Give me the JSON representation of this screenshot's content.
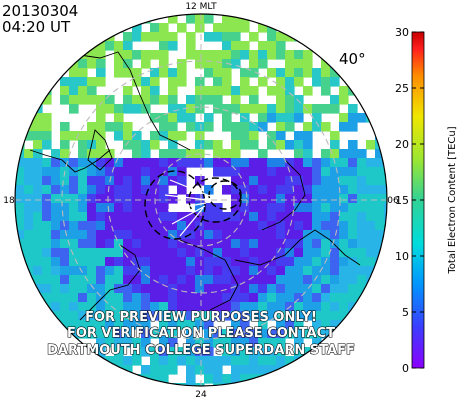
{
  "header": {
    "date": "20130304",
    "time": "04:20 UT"
  },
  "map": {
    "latitude_label": "40°",
    "mlt_labels": {
      "top": "12 MLT",
      "left": "18",
      "right": "06",
      "bottom": "24"
    },
    "colors": {
      "low": "#5a1ee6",
      "mid": "#1ec8c8",
      "high": "#8ce650"
    }
  },
  "colorbar": {
    "label": "Total Electron Content [TECu]",
    "ticks": [
      "0",
      "5",
      "10",
      "15",
      "20",
      "25",
      "30"
    ],
    "range": [
      0,
      30
    ],
    "colors": [
      "#8c00ff",
      "#3c3cff",
      "#0096ff",
      "#00dcdc",
      "#32d296",
      "#9be632",
      "#f0e600",
      "#ff8c00",
      "#ff1e1e",
      "#c80000"
    ]
  },
  "watermark": {
    "line1": "FOR PREVIEW PURPOSES ONLY!",
    "line2": "FOR VERIFICATION PLEASE CONTACT",
    "line3": "DARTMOUTH COLLEGE SUPERDARN STAFF"
  }
}
